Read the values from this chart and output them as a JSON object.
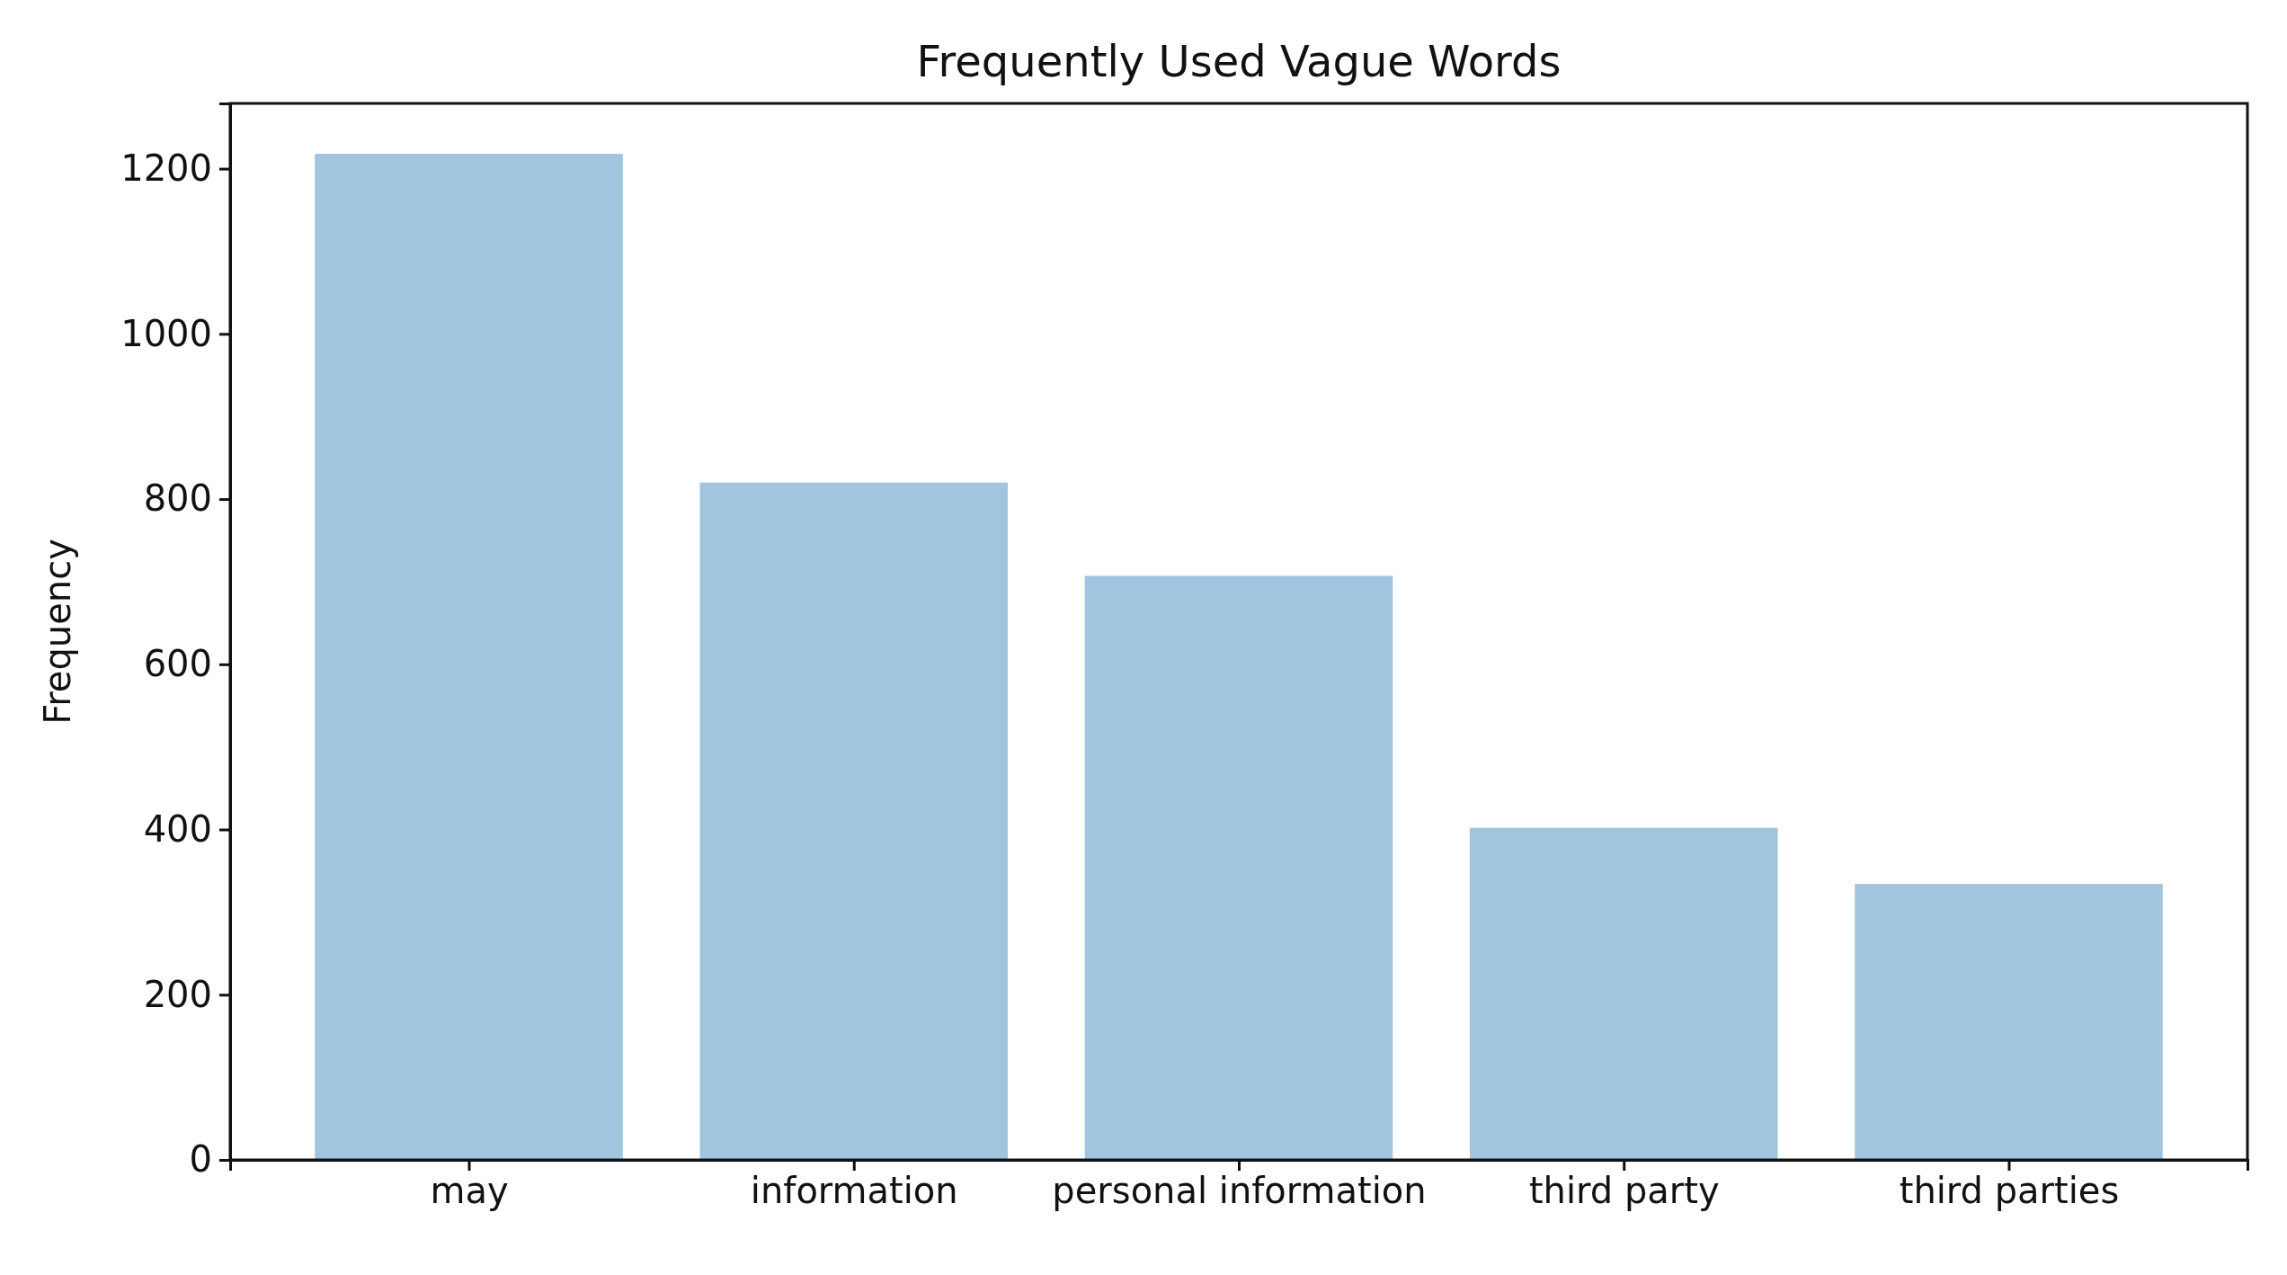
{
  "chart_data": {
    "type": "bar",
    "title": "Frequently Used Vague Words",
    "ylabel": "Frequency",
    "categories": [
      "may",
      "information",
      "personal information",
      "third party",
      "third parties"
    ],
    "values": [
      1218,
      820,
      707,
      402,
      334
    ],
    "color": "#a2c5df",
    "ylim": [
      0,
      1279
    ],
    "yticks": [
      0,
      200,
      400,
      600,
      800,
      1000,
      1200
    ],
    "grid": false
  }
}
